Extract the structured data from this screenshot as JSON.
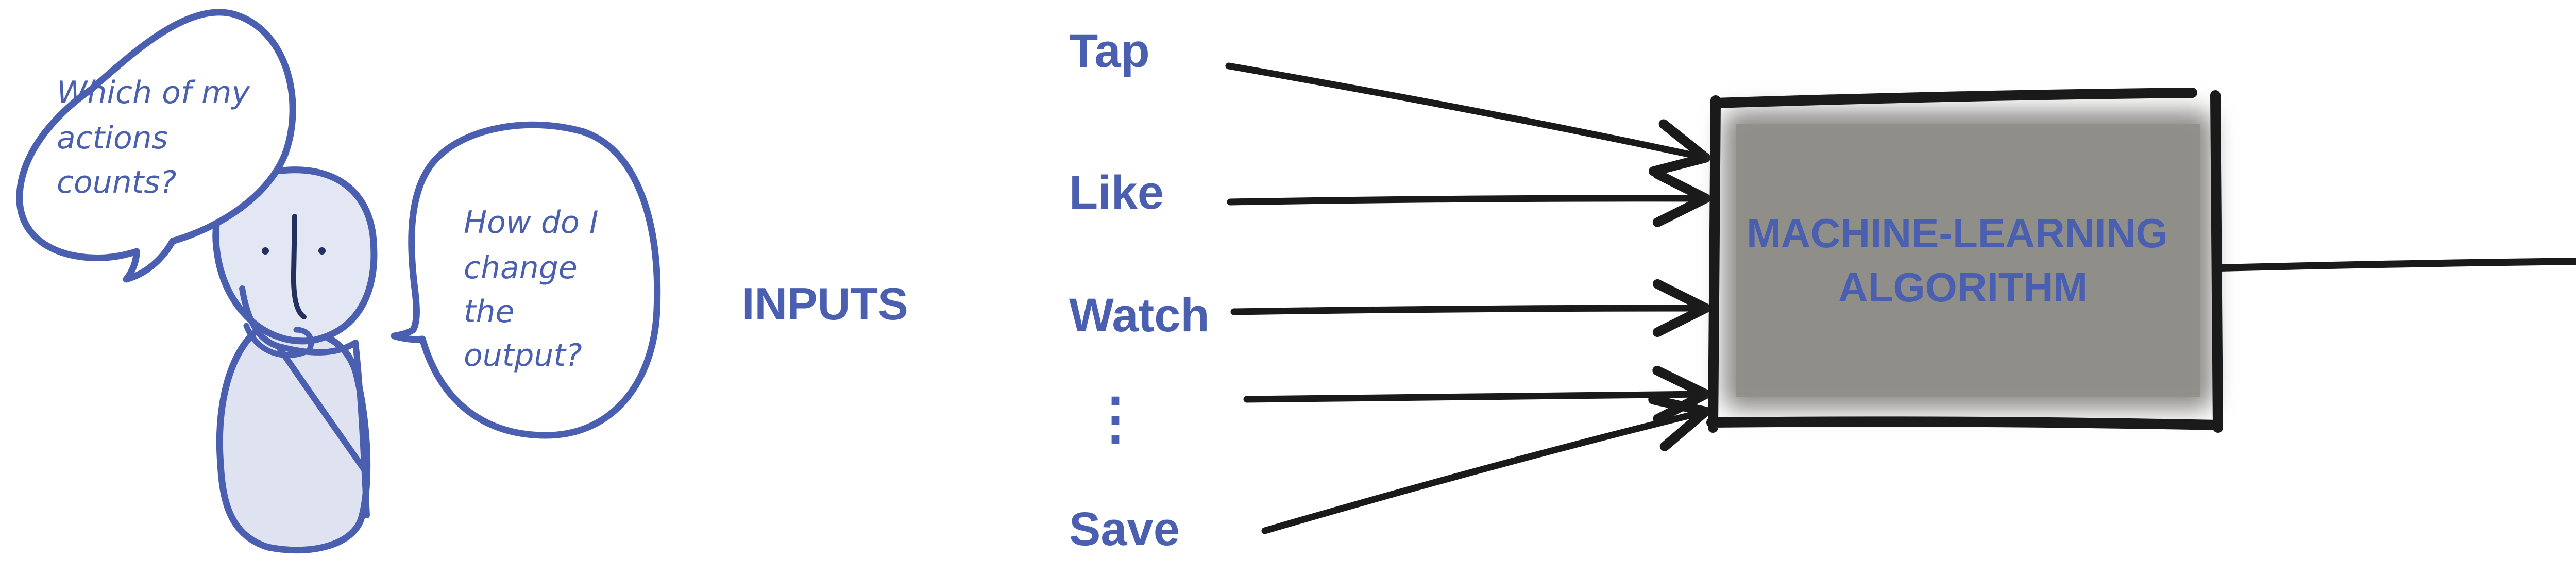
{
  "colors": {
    "ink_blue": "#4a5fb0",
    "stroke_dark": "#1a1a1a",
    "box_fill": "#8d8c88",
    "figure_fill": "#dfe2f1"
  },
  "bubbles": {
    "left": {
      "lines": [
        "Which of my",
        "actions",
        "counts?"
      ]
    },
    "right": {
      "lines": [
        "How do I",
        "change",
        "the",
        "output?"
      ]
    }
  },
  "inputs_label": "INPUTS",
  "inputs": [
    {
      "label": "Tap"
    },
    {
      "label": "Like"
    },
    {
      "label": "Watch"
    },
    {
      "label": "⋮"
    },
    {
      "label": "Save"
    }
  ],
  "box": {
    "lines": [
      "MACHINE-LEARNING",
      "ALGORITHM"
    ]
  }
}
